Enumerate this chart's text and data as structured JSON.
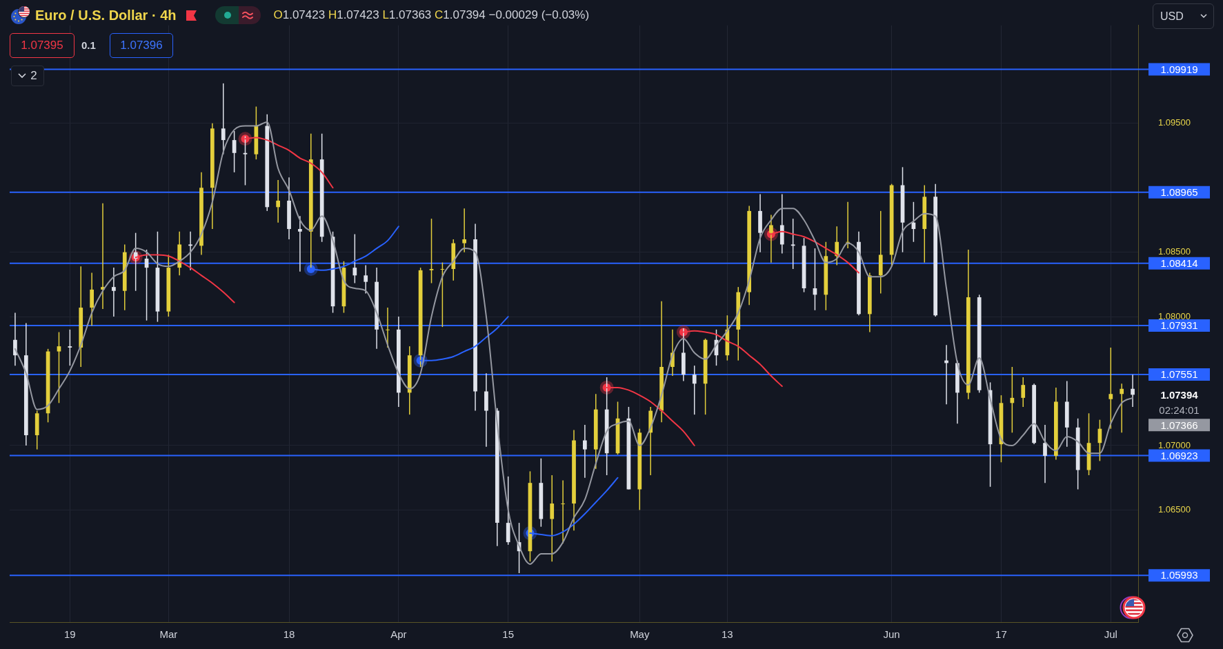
{
  "chart_data": {
    "type": "candlestick",
    "title": "Euro / U.S. Dollar · 4h",
    "subtitle": "O1.07423 H1.07423 L1.07363 C1.07394 −0.00029 (−0.03%)",
    "categories": [
      null,
      null,
      null,
      null,
      null,
      "19",
      null,
      null,
      null,
      null,
      null,
      null,
      null,
      null,
      "Mar",
      null,
      null,
      null,
      null,
      null,
      null,
      null,
      null,
      null,
      null,
      "18",
      null,
      null,
      null,
      null,
      null,
      null,
      null,
      null,
      null,
      "Apr",
      null,
      null,
      null,
      null,
      null,
      null,
      null,
      null,
      null,
      "15",
      null,
      null,
      null,
      null,
      null,
      null,
      null,
      null,
      null,
      null,
      null,
      "May",
      null,
      null,
      null,
      null,
      null,
      null,
      null,
      "13",
      null,
      null,
      null,
      null,
      null,
      null,
      null,
      null,
      null,
      null,
      null,
      null,
      null,
      null,
      "Jun",
      null,
      null,
      null,
      null,
      null,
      null,
      null,
      null,
      null,
      "17",
      null,
      null,
      null,
      null,
      null,
      null,
      null,
      null,
      null,
      "Jul",
      null,
      null
    ],
    "ohlc": [
      [
        1.0782,
        1.0803,
        1.0762,
        1.077
      ],
      [
        1.077,
        1.0795,
        1.07,
        1.0708
      ],
      [
        1.0708,
        1.0727,
        1.0697,
        1.0725
      ],
      [
        1.0725,
        1.0775,
        1.0718,
        1.0773
      ],
      [
        1.0773,
        1.0788,
        1.0733,
        1.0777
      ],
      [
        1.0777,
        1.079,
        1.0762,
        1.0776
      ],
      [
        1.0776,
        1.0839,
        1.0761,
        1.0807
      ],
      [
        1.0807,
        1.0834,
        1.0793,
        1.0821
      ],
      [
        1.0821,
        1.0888,
        1.0806,
        1.0823
      ],
      [
        1.0823,
        1.0838,
        1.08,
        1.082
      ],
      [
        1.082,
        1.0856,
        1.0805,
        1.085
      ],
      [
        1.085,
        1.0865,
        1.082,
        1.0845
      ],
      [
        1.0845,
        1.0852,
        1.0797,
        1.0838
      ],
      [
        1.0838,
        1.0866,
        1.0796,
        1.0804
      ],
      [
        1.0804,
        1.0848,
        1.08,
        1.0838
      ],
      [
        1.0838,
        1.0866,
        1.0832,
        1.0856
      ],
      [
        1.0856,
        1.0866,
        1.0836,
        1.0855
      ],
      [
        1.0855,
        1.0912,
        1.0848,
        1.09
      ],
      [
        1.09,
        1.095,
        1.0868,
        1.0946
      ],
      [
        1.0946,
        1.0981,
        1.0926,
        1.0937
      ],
      [
        1.0937,
        1.0944,
        1.0912,
        1.0927
      ],
      [
        1.0927,
        1.094,
        1.0902,
        1.0926
      ],
      [
        1.0926,
        1.0963,
        1.0922,
        1.0948
      ],
      [
        1.0948,
        1.0957,
        1.0882,
        1.0885
      ],
      [
        1.0885,
        1.0906,
        1.0873,
        1.089
      ],
      [
        1.089,
        1.0908,
        1.086,
        1.0868
      ],
      [
        1.0868,
        1.0878,
        1.0835,
        1.0866
      ],
      [
        1.0866,
        1.0942,
        1.0838,
        1.0922
      ],
      [
        1.0922,
        1.0942,
        1.0858,
        1.0862
      ],
      [
        1.0862,
        1.0866,
        1.0803,
        1.0808
      ],
      [
        1.0808,
        1.0843,
        1.0803,
        1.0838
      ],
      [
        1.0838,
        1.0864,
        1.0826,
        1.0832
      ],
      [
        1.0832,
        1.084,
        1.0818,
        1.0827
      ],
      [
        1.0827,
        1.0838,
        1.0775,
        1.079
      ],
      [
        1.079,
        1.0807,
        1.0776,
        1.079
      ],
      [
        1.079,
        1.08,
        1.073,
        1.0741
      ],
      [
        1.0741,
        1.0777,
        1.0724,
        1.077
      ],
      [
        1.077,
        1.0838,
        1.0761,
        1.0836
      ],
      [
        1.0836,
        1.0876,
        1.0826,
        1.0837
      ],
      [
        1.0837,
        1.0842,
        1.0792,
        1.0837
      ],
      [
        1.0837,
        1.086,
        1.0828,
        1.0857
      ],
      [
        1.0857,
        1.0884,
        1.085,
        1.086
      ],
      [
        1.086,
        1.0872,
        1.0727,
        1.0742
      ],
      [
        1.0742,
        1.0756,
        1.0699,
        1.0727
      ],
      [
        1.0727,
        1.0729,
        1.0622,
        1.064
      ],
      [
        1.064,
        1.0676,
        1.0623,
        1.0625
      ],
      [
        1.0625,
        1.064,
        1.0601,
        1.0618
      ],
      [
        1.0618,
        1.068,
        1.061,
        1.0671
      ],
      [
        1.0671,
        1.069,
        1.0637,
        1.0643
      ],
      [
        1.0643,
        1.0677,
        1.061,
        1.0655
      ],
      [
        1.0655,
        1.0673,
        1.0624,
        1.0655
      ],
      [
        1.0655,
        1.0712,
        1.0634,
        1.0704
      ],
      [
        1.0704,
        1.0716,
        1.0675,
        1.0697
      ],
      [
        1.0697,
        1.074,
        1.0682,
        1.0728
      ],
      [
        1.0728,
        1.0753,
        1.0677,
        1.0694
      ],
      [
        1.0694,
        1.0734,
        1.0693,
        1.0721
      ],
      [
        1.0721,
        1.073,
        1.0666,
        1.0666
      ],
      [
        1.0666,
        1.0713,
        1.065,
        1.071
      ],
      [
        1.071,
        1.073,
        1.0677,
        1.0727
      ],
      [
        1.0727,
        1.0812,
        1.0718,
        1.0761
      ],
      [
        1.0761,
        1.079,
        1.0754,
        1.0772
      ],
      [
        1.0772,
        1.0791,
        1.075,
        1.0755
      ],
      [
        1.0755,
        1.0762,
        1.0724,
        1.0748
      ],
      [
        1.0748,
        1.0783,
        1.0724,
        1.0782
      ],
      [
        1.0782,
        1.079,
        1.0762,
        1.077
      ],
      [
        1.077,
        1.0801,
        1.0766,
        1.079
      ],
      [
        1.079,
        1.0823,
        1.0766,
        1.0819
      ],
      [
        1.0819,
        1.0886,
        1.0809,
        1.0882
      ],
      [
        1.0882,
        1.0895,
        1.085,
        1.0865
      ],
      [
        1.0865,
        1.0879,
        1.0842,
        1.0871
      ],
      [
        1.0871,
        1.0895,
        1.0849,
        1.0856
      ],
      [
        1.0856,
        1.0876,
        1.0837,
        1.0855
      ],
      [
        1.0855,
        1.0861,
        1.0819,
        1.0822
      ],
      [
        1.0822,
        1.0853,
        1.0805,
        1.0817
      ],
      [
        1.0817,
        1.0858,
        1.0805,
        1.0847
      ],
      [
        1.0847,
        1.087,
        1.084,
        1.0858
      ],
      [
        1.0858,
        1.0889,
        1.0853,
        1.0858
      ],
      [
        1.0858,
        1.0866,
        1.0801,
        1.0802
      ],
      [
        1.0802,
        1.0834,
        1.0788,
        1.0832
      ],
      [
        1.0832,
        1.0882,
        1.0818,
        1.0848
      ],
      [
        1.0848,
        1.0903,
        1.0839,
        1.0902
      ],
      [
        1.0902,
        1.0916,
        1.085,
        1.0873
      ],
      [
        1.0873,
        1.0889,
        1.0858,
        1.0868
      ],
      [
        1.0868,
        1.0902,
        1.0842,
        1.0893
      ],
      [
        1.0893,
        1.0903,
        1.08,
        1.0801
      ],
      [
        1.0766,
        1.0778,
        1.0732,
        1.0764
      ],
      [
        1.0764,
        1.0766,
        1.0717,
        1.0741
      ],
      [
        1.0741,
        1.0852,
        1.0736,
        1.0815
      ],
      [
        1.0815,
        1.0817,
        1.0741,
        1.0743
      ],
      [
        1.0743,
        1.0749,
        1.0668,
        1.0701
      ],
      [
        1.0701,
        1.0739,
        1.0687,
        1.0733
      ],
      [
        1.0733,
        1.0761,
        1.071,
        1.0737
      ],
      [
        1.0737,
        1.0753,
        1.073,
        1.0747
      ],
      [
        1.0747,
        1.0748,
        1.0701,
        1.0702
      ],
      [
        1.0702,
        1.0716,
        1.0671,
        1.0692
      ],
      [
        1.0692,
        1.0745,
        1.0689,
        1.0734
      ],
      [
        1.0734,
        1.075,
        1.0699,
        1.0714
      ],
      [
        1.0714,
        1.0721,
        1.0666,
        1.0681
      ],
      [
        1.0681,
        1.0725,
        1.0677,
        1.0702
      ],
      [
        1.0702,
        1.072,
        1.0688,
        1.0713
      ],
      [
        1.0736,
        1.0776,
        1.0713,
        1.074
      ],
      [
        1.074,
        1.0748,
        1.071,
        1.0744
      ],
      [
        1.0744,
        1.0755,
        1.073,
        1.07394
      ]
    ],
    "colors": [
      "#e0e3eb",
      "#e0e3eb",
      "#e3cf3c",
      "#e3cf3c",
      "#e3cf3c",
      "#e0e3eb",
      "#e3cf3c",
      "#e3cf3c",
      "#e3cf3c",
      "#e0e3eb",
      "#e3cf3c",
      "#e0e3eb",
      "#e0e3eb",
      "#e0e3eb",
      "#e3cf3c",
      "#e3cf3c",
      "#e0e3eb",
      "#e3cf3c",
      "#e3cf3c",
      "#e0e3eb",
      "#e0e3eb",
      "#e0e3eb",
      "#e3cf3c",
      "#e0e3eb",
      "#e3cf3c",
      "#e0e3eb",
      "#e0e3eb",
      "#e3cf3c",
      "#e0e3eb",
      "#e0e3eb",
      "#e3cf3c",
      "#e0e3eb",
      "#e0e3eb",
      "#e0e3eb",
      "#e3cf3c",
      "#e0e3eb",
      "#e3cf3c",
      "#e3cf3c",
      "#e3cf3c",
      "#e3cf3c",
      "#e3cf3c",
      "#e3cf3c",
      "#e0e3eb",
      "#e0e3eb",
      "#e0e3eb",
      "#e0e3eb",
      "#e0e3eb",
      "#e3cf3c",
      "#e0e3eb",
      "#e3cf3c",
      "#e3cf3c",
      "#e3cf3c",
      "#e0e3eb",
      "#e3cf3c",
      "#e0e3eb",
      "#e3cf3c",
      "#e0e3eb",
      "#e3cf3c",
      "#e3cf3c",
      "#e3cf3c",
      "#e3cf3c",
      "#e0e3eb",
      "#e0e3eb",
      "#e3cf3c",
      "#e0e3eb",
      "#e3cf3c",
      "#e3cf3c",
      "#e3cf3c",
      "#e0e3eb",
      "#e3cf3c",
      "#e0e3eb",
      "#e0e3eb",
      "#e0e3eb",
      "#e0e3eb",
      "#e3cf3c",
      "#e3cf3c",
      "#e3cf3c",
      "#e0e3eb",
      "#e3cf3c",
      "#e3cf3c",
      "#e3cf3c",
      "#e0e3eb",
      "#e0e3eb",
      "#e3cf3c",
      "#e0e3eb",
      "#e0e3eb",
      "#e0e3eb",
      "#e3cf3c",
      "#e0e3eb",
      "#e0e3eb",
      "#e3cf3c",
      "#e3cf3c",
      "#e3cf3c",
      "#e0e3eb",
      "#e0e3eb",
      "#e3cf3c",
      "#e0e3eb",
      "#e0e3eb",
      "#e3cf3c",
      "#e3cf3c",
      "#e3cf3c",
      "#e3cf3c",
      "#e0e3eb"
    ],
    "series": [
      {
        "type": "line",
        "color": "#9598a1",
        "values": [
          1.0775,
          1.0756,
          1.0728,
          1.0731,
          1.0744,
          1.0758,
          1.0778,
          1.0803,
          1.082,
          1.0831,
          1.0836,
          1.0853,
          1.085,
          1.0841,
          1.0839,
          1.0843,
          1.085,
          1.0864,
          1.0889,
          1.0928,
          1.0945,
          1.0948,
          1.0948,
          1.0951,
          1.0915,
          1.0898,
          1.0875,
          1.0867,
          1.0878,
          1.0859,
          1.0828,
          1.0822,
          1.082,
          1.0803,
          1.0778,
          1.0756,
          1.0744,
          1.0756,
          1.08,
          1.0831,
          1.0843,
          1.0853,
          1.085,
          1.08,
          1.0717,
          1.065,
          1.0622,
          1.0608,
          1.0616,
          1.0616,
          1.0625,
          1.0644,
          1.0658,
          1.0686,
          1.0711,
          1.0717,
          1.0719,
          1.07,
          1.0714,
          1.0739,
          1.077,
          1.0783,
          1.0772,
          1.0767,
          1.0778,
          1.0789,
          1.0803,
          1.0828,
          1.0861,
          1.0875,
          1.0884,
          1.0884,
          1.0875,
          1.0859,
          1.0842,
          1.0845,
          1.0857,
          1.085,
          1.0831,
          1.0831,
          1.0839,
          1.0866,
          1.0874,
          1.088,
          1.0878,
          1.0822,
          1.0764,
          1.0747,
          1.0768,
          1.0736,
          1.0705,
          1.07,
          1.0708,
          1.0717,
          1.0703,
          1.0696,
          1.0707,
          1.0703,
          1.0694,
          1.0694,
          1.0717,
          1.0733,
          1.0737
        ]
      },
      {
        "type": "line",
        "color": "#f23645",
        "values": [
          null,
          null,
          null,
          null,
          null,
          null,
          null,
          null,
          null,
          null,
          null,
          1.0846,
          1.0848,
          1.0848,
          1.0847,
          1.0843,
          1.0838,
          1.0832,
          1.0826,
          1.0819,
          1.0811,
          null,
          null,
          null,
          null,
          null,
          null,
          null,
          null,
          null,
          null,
          null,
          null,
          null,
          null,
          null,
          null,
          null,
          null,
          null,
          null,
          null,
          null,
          null,
          null,
          null,
          null,
          null,
          null,
          null,
          null,
          null,
          null,
          null,
          1.0745,
          1.0745,
          1.0743,
          1.0739,
          1.0734,
          1.0727,
          1.0719,
          1.0711,
          1.07,
          null,
          null,
          null,
          null,
          null,
          null,
          1.0864,
          1.0866,
          1.0864,
          1.0862,
          1.0858,
          1.0853,
          1.0848,
          1.0842,
          1.0834,
          null,
          null,
          null,
          null,
          null,
          null,
          null,
          null,
          null,
          null,
          null,
          null,
          null,
          null,
          null,
          null,
          null,
          null,
          null,
          null,
          null,
          null,
          null,
          null,
          null
        ]
      },
      {
        "type": "line",
        "color": "#f23645",
        "values": [
          null,
          null,
          null,
          null,
          null,
          null,
          null,
          null,
          null,
          null,
          null,
          null,
          null,
          null,
          null,
          null,
          null,
          null,
          null,
          null,
          null,
          1.0938,
          1.0939,
          1.0937,
          1.0933,
          1.0929,
          1.0923,
          1.0919,
          1.0912,
          1.09,
          null,
          null,
          null,
          null,
          null,
          null,
          null,
          null,
          null,
          null,
          null,
          null,
          null,
          null,
          null,
          null,
          null,
          null,
          null,
          null,
          null,
          null,
          null,
          null,
          null,
          null,
          null,
          null,
          null,
          null,
          null,
          1.0788,
          1.0789,
          1.0788,
          1.0786,
          1.0781,
          1.0777,
          1.077,
          1.0763,
          1.0754,
          1.0746,
          null,
          null,
          null,
          null,
          null,
          null,
          null,
          null,
          null,
          null,
          null,
          null,
          null,
          null,
          null,
          null,
          null,
          null,
          null,
          null,
          null,
          null,
          null,
          null,
          null,
          null,
          null,
          null,
          null,
          null,
          null,
          null
        ]
      },
      {
        "type": "line",
        "color": "#2962ff",
        "values": [
          null,
          null,
          null,
          null,
          null,
          null,
          null,
          null,
          null,
          null,
          null,
          null,
          null,
          null,
          null,
          null,
          null,
          null,
          null,
          null,
          null,
          null,
          null,
          null,
          null,
          null,
          null,
          1.0837,
          1.0836,
          1.0837,
          1.0839,
          1.0843,
          1.0847,
          1.0853,
          1.0859,
          1.087,
          null,
          1.0766,
          1.0766,
          1.0767,
          1.0769,
          1.0773,
          1.0777,
          1.0784,
          1.0791,
          1.08,
          null,
          1.0632,
          1.0631,
          1.063,
          1.0633,
          1.0639,
          1.0647,
          1.0656,
          1.0665,
          1.0675,
          null,
          null,
          null,
          null,
          null,
          null,
          null,
          null,
          null,
          null,
          null,
          null,
          null,
          null,
          null,
          null,
          null,
          null,
          null,
          null,
          null,
          null,
          null,
          null,
          null,
          null,
          null,
          null,
          null,
          null,
          null,
          null,
          null,
          null,
          null,
          null,
          null,
          null,
          null,
          null,
          null,
          null,
          null,
          null,
          null,
          null,
          null
        ]
      },
      {
        "type": "scatter",
        "color": "#f23645",
        "values": [
          null,
          null,
          null,
          null,
          null,
          null,
          null,
          null,
          null,
          null,
          null,
          1.0846,
          null,
          null,
          null,
          null,
          null,
          null,
          null,
          null,
          null,
          1.0938,
          null,
          null,
          null,
          null,
          null,
          null,
          null,
          null,
          null,
          null,
          null,
          null,
          null,
          null,
          null,
          null,
          null,
          null,
          null,
          null,
          null,
          null,
          null,
          null,
          null,
          null,
          null,
          null,
          null,
          null,
          null,
          null,
          1.0745,
          null,
          null,
          null,
          null,
          null,
          null,
          1.0788,
          null,
          null,
          null,
          null,
          null,
          null,
          null,
          1.0864,
          null,
          null,
          null,
          null,
          null,
          null,
          null,
          null,
          null,
          null,
          null,
          null,
          null,
          null,
          null,
          null,
          null,
          null,
          null,
          null,
          null,
          null,
          null,
          null,
          null,
          null,
          null,
          null,
          null,
          null,
          null,
          null,
          null
        ]
      },
      {
        "type": "scatter",
        "color": "#2962ff",
        "values": [
          null,
          null,
          null,
          null,
          null,
          null,
          null,
          null,
          null,
          null,
          null,
          null,
          null,
          null,
          null,
          null,
          null,
          null,
          null,
          null,
          null,
          null,
          null,
          null,
          null,
          null,
          null,
          1.0837,
          null,
          null,
          null,
          null,
          null,
          null,
          null,
          null,
          null,
          1.0766,
          null,
          null,
          null,
          null,
          null,
          null,
          null,
          null,
          null,
          1.0632,
          null,
          null,
          null,
          null,
          null,
          null,
          null,
          null,
          null,
          null,
          null,
          null,
          null,
          null,
          null,
          null,
          null,
          null,
          null,
          null,
          null,
          null,
          null,
          null,
          null,
          null,
          null,
          null,
          null,
          null,
          null,
          null,
          null,
          null,
          null,
          null,
          null,
          null,
          null,
          null,
          null,
          null,
          null,
          null,
          null,
          null,
          null,
          null,
          null,
          null,
          null,
          null,
          null,
          null,
          null
        ]
      }
    ],
    "ylim": [
      1.0563,
      1.1026
    ],
    "yticks": [
      {
        "value": 1.065,
        "label": "1.06500"
      },
      {
        "value": 1.07,
        "label": "1.07000"
      },
      {
        "value": 1.08,
        "label": "1.08000"
      },
      {
        "value": 1.085,
        "label": "1.08500"
      },
      {
        "value": 1.095,
        "label": "1.09500"
      }
    ],
    "ref_lines": [
      {
        "axis": "y",
        "value": 1.09919,
        "label": "1.09919",
        "color": "#2962ff"
      },
      {
        "axis": "y",
        "value": 1.08965,
        "label": "1.08965",
        "color": "#2962ff"
      },
      {
        "axis": "y",
        "value": 1.08414,
        "label": "1.08414",
        "color": "#2962ff"
      },
      {
        "axis": "y",
        "value": 1.07931,
        "label": "1.07931",
        "color": "#2962ff"
      },
      {
        "axis": "y",
        "value": 1.07551,
        "label": "1.07551",
        "color": "#2962ff"
      },
      {
        "axis": "y",
        "value": 1.06923,
        "label": "1.06923",
        "color": "#2962ff"
      },
      {
        "axis": "y",
        "value": 1.05993,
        "label": "1.05993",
        "color": "#2962ff"
      }
    ],
    "annotations": [
      "1.07395",
      "0.1",
      "1.07396",
      "2",
      "USD",
      "1.07394",
      "02:24:01",
      "1.07366"
    ],
    "grid": true
  }
}
